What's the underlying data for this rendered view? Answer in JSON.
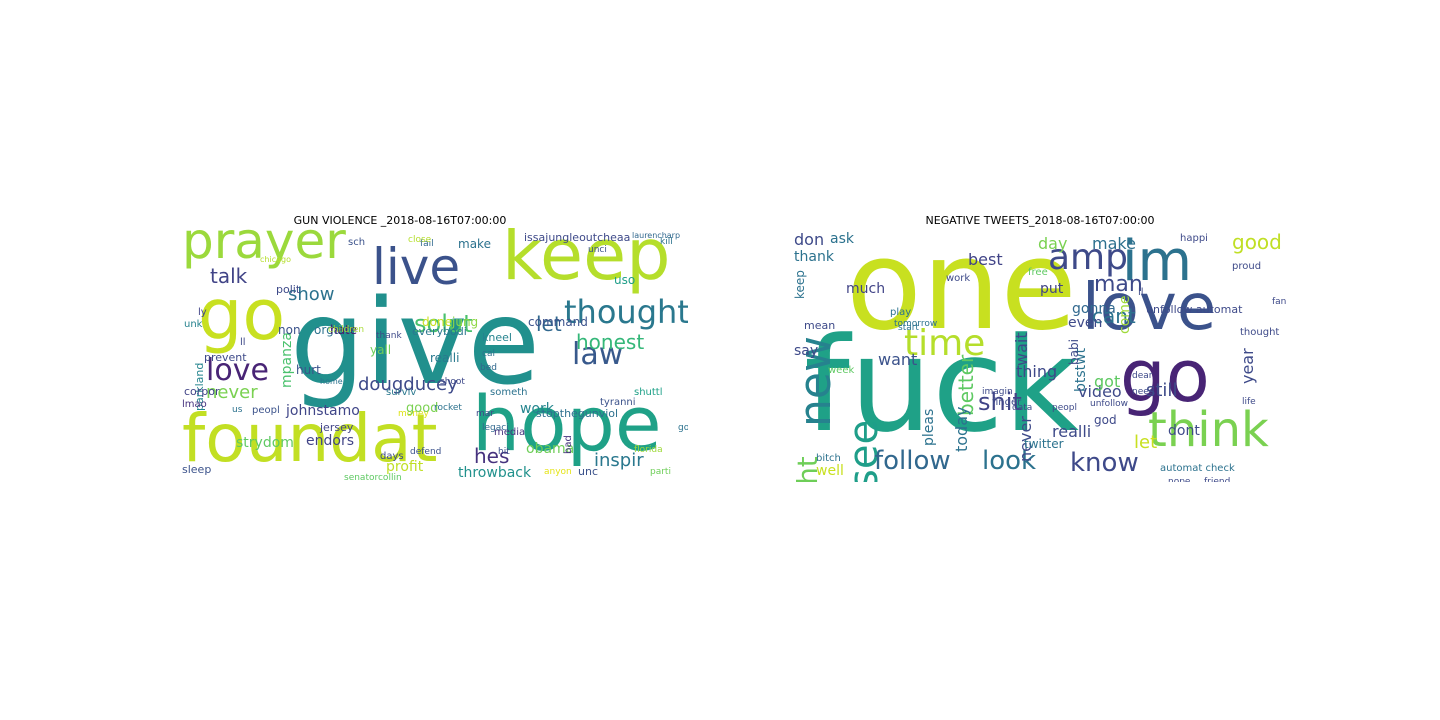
{
  "panels": [
    {
      "title": "GUN VIOLENCE _2018-08-16T07:00:00",
      "words": [
        {
          "t": "give",
          "c": "#21908d"
        },
        {
          "t": "foundat",
          "c": "#c2df23"
        },
        {
          "t": "hope",
          "c": "#1fa187"
        },
        {
          "t": "keep",
          "c": "#b5de2b"
        },
        {
          "t": "prayer",
          "c": "#9bd93c"
        },
        {
          "t": "go",
          "c": "#c8e020"
        },
        {
          "t": "live",
          "c": "#3b528b"
        },
        {
          "t": "thought",
          "c": "#2a788e"
        },
        {
          "t": "law",
          "c": "#38598c"
        },
        {
          "t": "love",
          "c": "#482475"
        },
        {
          "t": "honest",
          "c": "#35b779"
        },
        {
          "t": "solut",
          "c": "#4ac16d"
        },
        {
          "t": "talk",
          "c": "#414487"
        },
        {
          "t": "show",
          "c": "#2c728e"
        },
        {
          "t": "let",
          "c": "#31688e"
        },
        {
          "t": "inspir",
          "c": "#2a788e"
        },
        {
          "t": "hes",
          "c": "#46327e"
        },
        {
          "t": "dougducey",
          "c": "#3e4a89"
        },
        {
          "t": "great",
          "c": "#5ec962"
        },
        {
          "t": "never",
          "c": "#7ad151"
        },
        {
          "t": "obama",
          "c": "#6ece58"
        },
        {
          "t": "throwback",
          "c": "#21918c"
        },
        {
          "t": "work",
          "c": "#25858e"
        },
        {
          "t": "profit",
          "c": "#c0df25"
        },
        {
          "t": "endors",
          "c": "#414487"
        },
        {
          "t": "strydom",
          "c": "#5ec962"
        },
        {
          "t": "johnstamo",
          "c": "#404688"
        },
        {
          "t": "mpanza",
          "c": "#4ac16d"
        },
        {
          "t": "non",
          "c": "#3b528b"
        },
        {
          "t": "organ",
          "c": "#2c728e"
        },
        {
          "t": "hate",
          "c": "#481a6c"
        },
        {
          "t": "make",
          "c": "#2c728e"
        },
        {
          "t": "uso",
          "c": "#1f9e89"
        },
        {
          "t": "done",
          "c": "#c8e020"
        },
        {
          "t": "jung",
          "c": "#8fd744"
        },
        {
          "t": "command",
          "c": "#3b528b"
        },
        {
          "t": "issajungleoutcheaa",
          "c": "#3e4989"
        },
        {
          "t": "stopthegunviol",
          "c": "#2d708e"
        },
        {
          "t": "unc",
          "c": "#3b528b"
        },
        {
          "t": "bad",
          "c": "#46337f"
        },
        {
          "t": "anyon",
          "c": "#e5e419"
        },
        {
          "t": "sleep",
          "c": "#3b528b"
        },
        {
          "t": "prevent",
          "c": "#3e4a89"
        },
        {
          "t": "jersey",
          "c": "#414487"
        },
        {
          "t": "money",
          "c": "#dde318"
        },
        {
          "t": "everybodi",
          "c": "#2a788e"
        },
        {
          "t": "yall",
          "c": "#6ece58"
        },
        {
          "t": "good",
          "c": "#7ad151"
        },
        {
          "t": "kneel",
          "c": "#25838e"
        },
        {
          "t": "someth",
          "c": "#2c728e"
        },
        {
          "t": "polit",
          "c": "#3e4a89"
        },
        {
          "t": "children",
          "c": "#a8db34"
        },
        {
          "t": "hurt",
          "c": "#3b528b"
        },
        {
          "t": "thank",
          "c": "#3e4a89"
        },
        {
          "t": "unk",
          "c": "#26828e"
        },
        {
          "t": "parkland",
          "c": "#25858e"
        },
        {
          "t": "corpor",
          "c": "#414487"
        },
        {
          "t": "us",
          "c": "#2c728e"
        },
        {
          "t": "peopl",
          "c": "#3b528b"
        },
        {
          "t": "realli",
          "c": "#29798e"
        },
        {
          "t": "shuttl",
          "c": "#1fa188"
        },
        {
          "t": "bed",
          "c": "#31688e"
        },
        {
          "t": "media",
          "c": "#46337f"
        },
        {
          "t": "cal",
          "c": "#2c728e"
        },
        {
          "t": "tyranni",
          "c": "#3b528b"
        },
        {
          "t": "shoot",
          "c": "#3e4989"
        },
        {
          "t": "fail",
          "c": "#31688e"
        },
        {
          "t": "unci",
          "c": "#3b528b"
        },
        {
          "t": "chicago",
          "c": "#b5de2b"
        },
        {
          "t": "lmao",
          "c": "#46327e"
        },
        {
          "t": "florida",
          "c": "#9fda3a"
        },
        {
          "t": "god",
          "c": "#2c728e"
        },
        {
          "t": "hit",
          "c": "#3b528b"
        },
        {
          "t": "rocket",
          "c": "#2c728e"
        },
        {
          "t": "days",
          "c": "#3e4a89"
        },
        {
          "t": "defend",
          "c": "#3b528b"
        },
        {
          "t": "surviv",
          "c": "#2a788e"
        },
        {
          "t": "legaci",
          "c": "#31688e"
        },
        {
          "t": "senatorcollin",
          "c": "#5ec962"
        },
        {
          "t": "home",
          "c": "#2c728e"
        },
        {
          "t": "ly",
          "c": "#414487"
        },
        {
          "t": "ll",
          "c": "#3e4a89"
        },
        {
          "t": "sch",
          "c": "#3b528b"
        },
        {
          "t": "close",
          "c": "#b5de2b"
        },
        {
          "t": "laurencharp",
          "c": "#31688e"
        },
        {
          "t": "parti",
          "c": "#6ece58"
        },
        {
          "t": "mar",
          "c": "#3e4a89"
        },
        {
          "t": "kill",
          "c": "#2c728e"
        }
      ]
    },
    {
      "title": "NEGATIVE TWEETS_2018-08-16T07:00:00",
      "words": [
        {
          "t": "fuck",
          "c": "#1fa187"
        },
        {
          "t": "one",
          "c": "#c8e020"
        },
        {
          "t": "love",
          "c": "#3b528b"
        },
        {
          "t": "go",
          "c": "#482475"
        },
        {
          "t": "im",
          "c": "#2c728e"
        },
        {
          "t": "think",
          "c": "#7ad151"
        },
        {
          "t": "new",
          "c": "#26828e"
        },
        {
          "t": "see",
          "c": "#1f9e89"
        },
        {
          "t": "time",
          "c": "#b5de2b"
        },
        {
          "t": "amp",
          "c": "#3e4a89"
        },
        {
          "t": "follow",
          "c": "#31688e"
        },
        {
          "t": "look",
          "c": "#2c728e"
        },
        {
          "t": "know",
          "c": "#3e4989"
        },
        {
          "t": "shit",
          "c": "#414487"
        },
        {
          "t": "right",
          "c": "#6ece58"
        },
        {
          "t": "man",
          "c": "#3e4a89"
        },
        {
          "t": "cant",
          "c": "#2c728e"
        },
        {
          "t": "good",
          "c": "#c0df25"
        },
        {
          "t": "make",
          "c": "#2d708e"
        },
        {
          "t": "day",
          "c": "#7ad151"
        },
        {
          "t": "best",
          "c": "#414487"
        },
        {
          "t": "don",
          "c": "#3e4a89"
        },
        {
          "t": "ask",
          "c": "#2c728e"
        },
        {
          "t": "thank",
          "c": "#2c728e"
        },
        {
          "t": "much",
          "c": "#414487"
        },
        {
          "t": "keep",
          "c": "#2c728e"
        },
        {
          "t": "better",
          "c": "#5ec962"
        },
        {
          "t": "wait",
          "c": "#3e4a89"
        },
        {
          "t": "want",
          "c": "#3b528b"
        },
        {
          "t": "thing",
          "c": "#3e4989"
        },
        {
          "t": "btstwt",
          "c": "#2c728e"
        },
        {
          "t": "even",
          "c": "#3e4a89"
        },
        {
          "t": "put",
          "c": "#414487"
        },
        {
          "t": "gonna",
          "c": "#31688e"
        },
        {
          "t": "babi",
          "c": "#3e4a89"
        },
        {
          "t": "come",
          "c": "#9fda3a"
        },
        {
          "t": "video",
          "c": "#3e4a89"
        },
        {
          "t": "god",
          "c": "#3e4989"
        },
        {
          "t": "got",
          "c": "#5ec962"
        },
        {
          "t": "still",
          "c": "#3e4a89"
        },
        {
          "t": "dont",
          "c": "#3e4a89"
        },
        {
          "t": "year",
          "c": "#3e4a89"
        },
        {
          "t": "let",
          "c": "#c8e020"
        },
        {
          "t": "realli",
          "c": "#3e4a89"
        },
        {
          "t": "never",
          "c": "#3e4a89"
        },
        {
          "t": "today",
          "c": "#2c728e"
        },
        {
          "t": "pleas",
          "c": "#2c728e"
        },
        {
          "t": "say",
          "c": "#3e4a89"
        },
        {
          "t": "well",
          "c": "#c8e020"
        },
        {
          "t": "mean",
          "c": "#3e4a89"
        },
        {
          "t": "play",
          "c": "#2c728e"
        },
        {
          "t": "work",
          "c": "#3e4a89"
        },
        {
          "t": "free",
          "c": "#5ec962"
        },
        {
          "t": "happi",
          "c": "#3e4a89"
        },
        {
          "t": "twitter",
          "c": "#2c728e"
        },
        {
          "t": "unfollow automat",
          "c": "#3e4a89"
        },
        {
          "t": "automat check",
          "c": "#2c728e"
        },
        {
          "t": "tomorrow",
          "c": "#2c728e"
        },
        {
          "t": "finger",
          "c": "#3e4a89"
        },
        {
          "t": "peopl",
          "c": "#3e4a89"
        },
        {
          "t": "unfollow",
          "c": "#3e4a89"
        },
        {
          "t": "nope",
          "c": "#3e4a89"
        },
        {
          "t": "friend",
          "c": "#3e4a89"
        },
        {
          "t": "proud",
          "c": "#3e4a89"
        },
        {
          "t": "thought",
          "c": "#3e4a89"
        },
        {
          "t": "ll",
          "c": "#3e4a89"
        },
        {
          "t": "week",
          "c": "#5ec962"
        },
        {
          "t": "imagin",
          "c": "#3e4a89"
        },
        {
          "t": "start",
          "c": "#2c728e"
        },
        {
          "t": "dear",
          "c": "#3e4a89"
        },
        {
          "t": "data",
          "c": "#3e4a89"
        },
        {
          "t": "need",
          "c": "#3e4a89"
        },
        {
          "t": "bitch",
          "c": "#2c728e"
        },
        {
          "t": "fan",
          "c": "#3e4a89"
        },
        {
          "t": "life",
          "c": "#3e4a89"
        }
      ]
    }
  ]
}
